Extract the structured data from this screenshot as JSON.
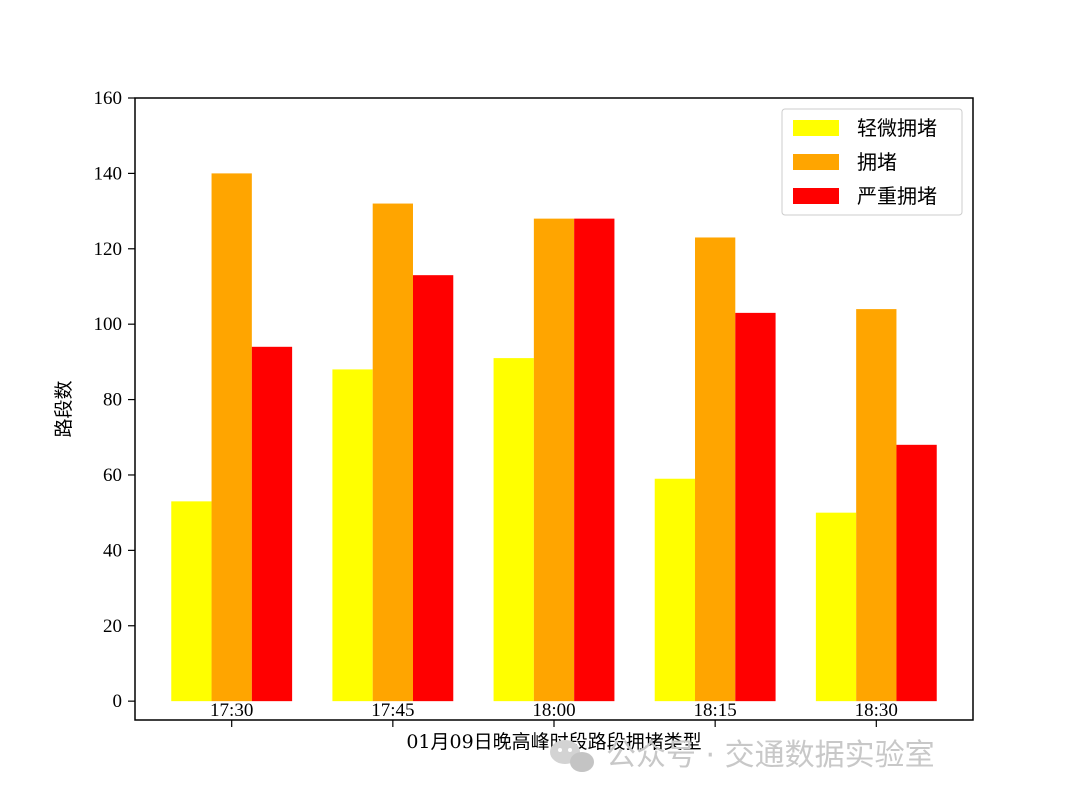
{
  "chart_data": {
    "type": "bar",
    "title": "",
    "xlabel": "01月09日晚高峰时段路段拥堵类型",
    "ylabel": "路段数",
    "categories": [
      "17:30",
      "17:45",
      "18:00",
      "18:15",
      "18:30"
    ],
    "series": [
      {
        "name": "轻微拥堵",
        "color": "#ffff00",
        "values": [
          53,
          88,
          91,
          59,
          50
        ]
      },
      {
        "name": "拥堵",
        "color": "#ffa500",
        "values": [
          140,
          132,
          128,
          123,
          104
        ]
      },
      {
        "name": "严重拥堵",
        "color": "#ff0000",
        "values": [
          94,
          113,
          128,
          103,
          68
        ]
      }
    ],
    "ylim": [
      -5,
      160
    ],
    "yticks": [
      0,
      20,
      40,
      60,
      80,
      100,
      120,
      140,
      160
    ],
    "grid": false,
    "legend_position": "top-right"
  },
  "watermark": {
    "text": "公众号 · 交通数据实验室",
    "icon": "wechat-icon"
  }
}
